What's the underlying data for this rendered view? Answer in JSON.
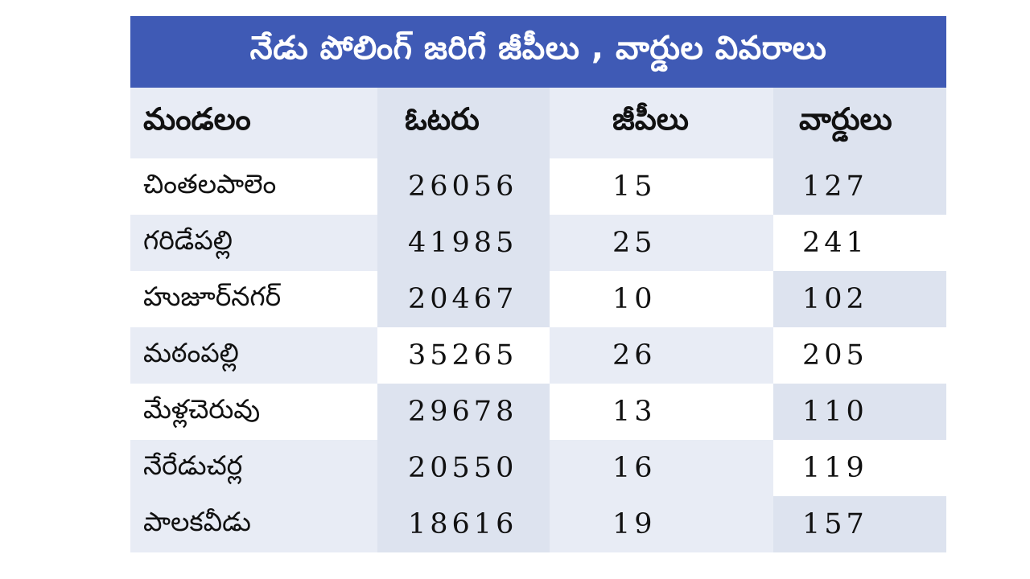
{
  "title": "నేడు పోలింగ్ జరిగే జీపీలు , వార్డుల వివరాలు",
  "colors": {
    "title_bg": "#3f5ab5",
    "title_text": "#ffffff",
    "cell_shade_dark": "#dde3ef",
    "cell_shade_light": "#e8ecf5",
    "cell_white": "#ffffff"
  },
  "table": {
    "headers": {
      "mandal": "మండలం",
      "voters": "ఓటరు",
      "gps": "జీపీలు",
      "wards": "వార్డులు"
    },
    "rows": [
      {
        "mandal": "చింతలపాలెం",
        "voters": "26056",
        "gps": "15",
        "wards": "127"
      },
      {
        "mandal": "గరిడేపల్లి",
        "voters": "41985",
        "gps": "25",
        "wards": "241"
      },
      {
        "mandal": "హుజూర్‌నగర్",
        "voters": "20467",
        "gps": "10",
        "wards": "102"
      },
      {
        "mandal": "మఠంపల్లి",
        "voters": "35265",
        "gps": "26",
        "wards": "205"
      },
      {
        "mandal": "మేళ్లచెరువు",
        "voters": "29678",
        "gps": "13",
        "wards": "110"
      },
      {
        "mandal": "నేరేడుచర్ల",
        "voters": "20550",
        "gps": "16",
        "wards": "119"
      },
      {
        "mandal": "పాలకవీడు",
        "voters": "18616",
        "gps": "19",
        "wards": "157"
      }
    ]
  }
}
